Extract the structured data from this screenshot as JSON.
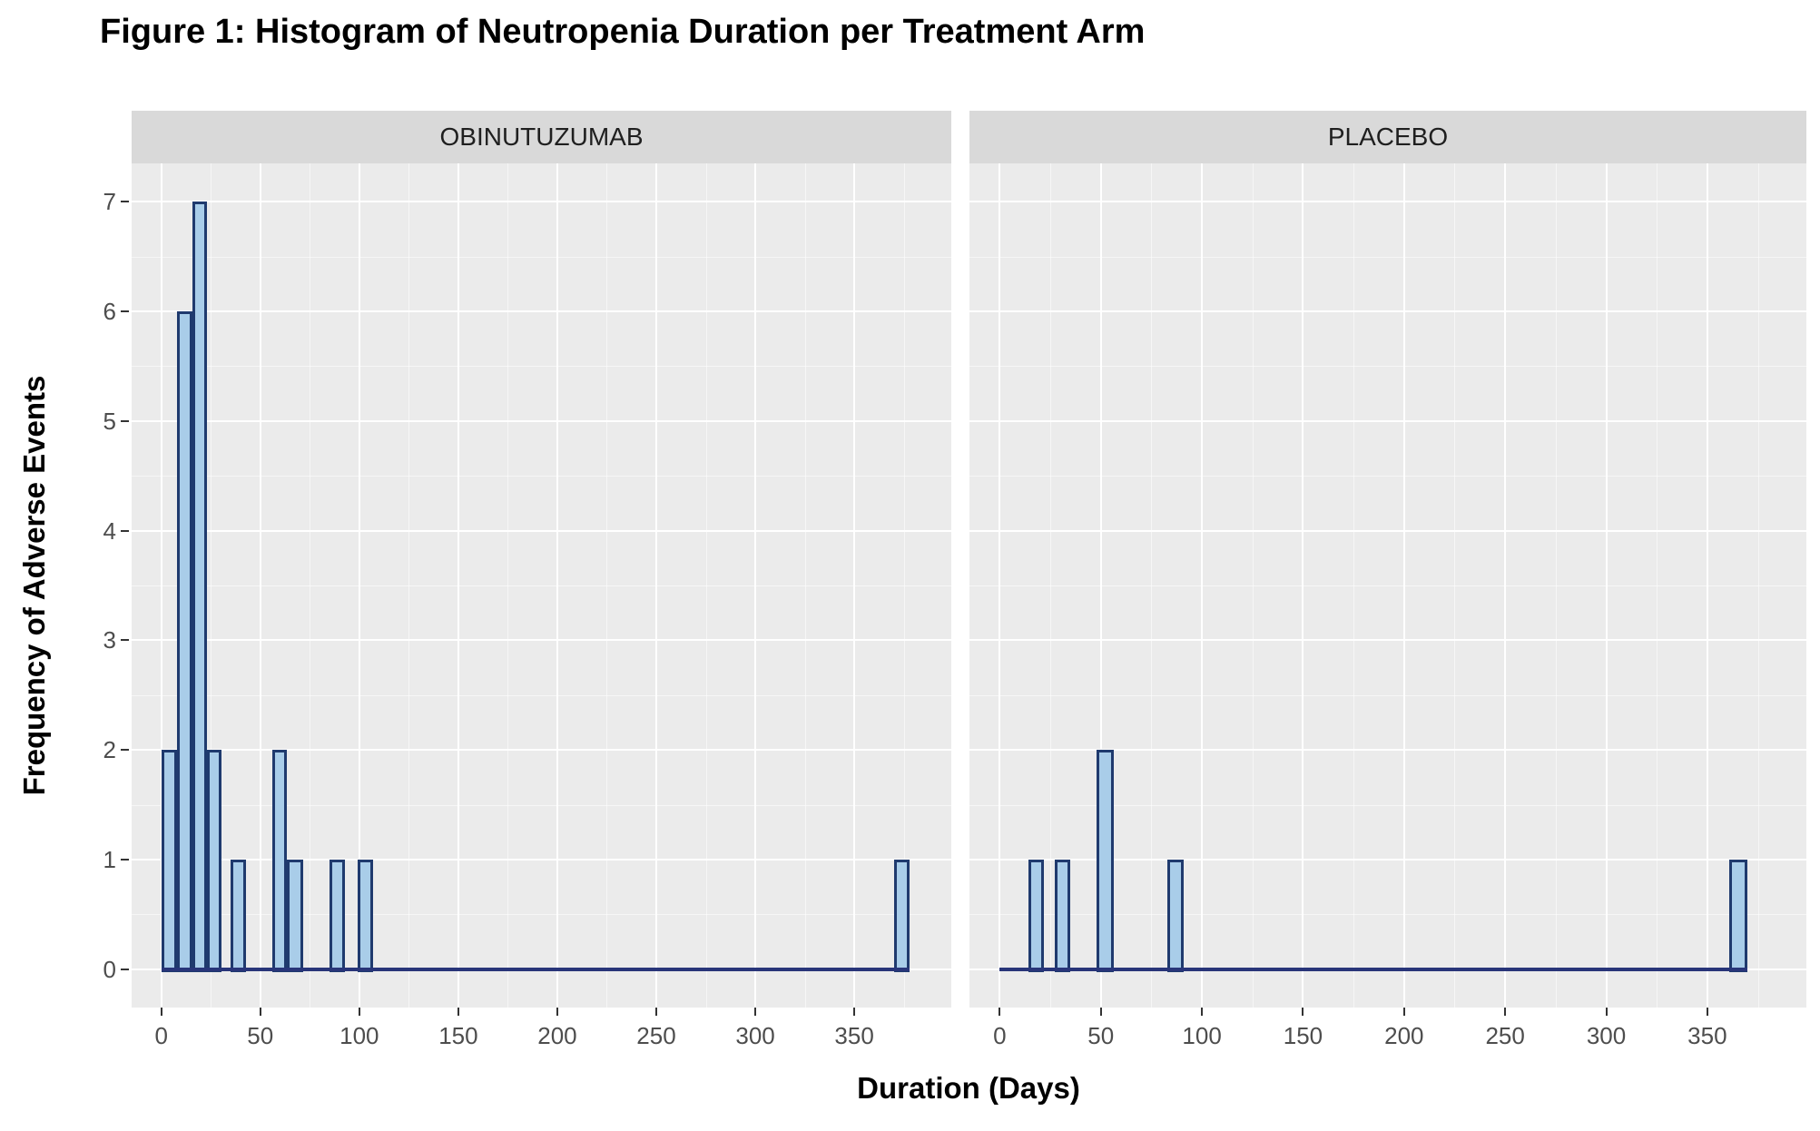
{
  "chart_data": {
    "type": "bar",
    "subtype": "faceted-histogram",
    "title": "Figure 1: Histogram of Neutropenia Duration per Treatment Arm",
    "xlabel": "Duration (Days)",
    "ylabel": "Frequency of Adverse Events",
    "x_ticks": [
      0,
      50,
      100,
      150,
      200,
      250,
      300,
      350
    ],
    "y_ticks": [
      0,
      1,
      2,
      3,
      4,
      5,
      6,
      7
    ],
    "x_minor_ticks": [
      25,
      75,
      125,
      175,
      225,
      275,
      325,
      375
    ],
    "y_minor_ticks": [
      0.5,
      1.5,
      2.5,
      3.5,
      4.5,
      5.5,
      6.5
    ],
    "xlim": [
      -15,
      399
    ],
    "ylim": [
      -0.35,
      7.35
    ],
    "grid": true,
    "legend": "none",
    "facets": [
      {
        "label": "OBINUTUZUMAB",
        "bars": [
          {
            "start": 0,
            "end": 8,
            "count": 2
          },
          {
            "start": 8,
            "end": 15.5,
            "count": 6
          },
          {
            "start": 15.5,
            "end": 23,
            "count": 7
          },
          {
            "start": 23,
            "end": 30.5,
            "count": 2
          },
          {
            "start": 35,
            "end": 43,
            "count": 1
          },
          {
            "start": 56,
            "end": 63.5,
            "count": 2
          },
          {
            "start": 63.5,
            "end": 71.5,
            "count": 1
          },
          {
            "start": 85,
            "end": 93,
            "count": 1
          },
          {
            "start": 99,
            "end": 107,
            "count": 1
          },
          {
            "start": 370,
            "end": 378,
            "count": 1
          }
        ],
        "baseline": {
          "start": 0,
          "end": 378
        }
      },
      {
        "label": "PLACEBO",
        "bars": [
          {
            "start": 14,
            "end": 22,
            "count": 1
          },
          {
            "start": 27,
            "end": 35,
            "count": 1
          },
          {
            "start": 48,
            "end": 56.5,
            "count": 2
          },
          {
            "start": 83,
            "end": 91,
            "count": 1
          },
          {
            "start": 361,
            "end": 370,
            "count": 1
          }
        ],
        "baseline": {
          "start": 0,
          "end": 370
        }
      }
    ],
    "colors": {
      "bar_fill": "#a9cde9",
      "bar_border": "#1f3a6e",
      "baseline": "#283579",
      "panel_bg": "#ebebeb",
      "strip_bg": "#d9d9d9",
      "grid_major": "#ffffff",
      "grid_minor": "rgba(255,255,255,0.55)",
      "tick_label": "#4d4d4d",
      "axis_title": "#000000"
    }
  }
}
